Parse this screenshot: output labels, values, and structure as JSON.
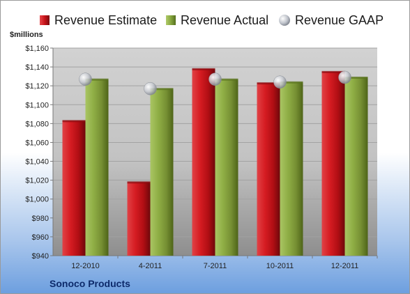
{
  "legend": {
    "estimate": "Revenue Estimate",
    "actual": "Revenue Actual",
    "gaap": "Revenue GAAP"
  },
  "ylabel": "$millions",
  "company": "Sonoco Products",
  "colors": {
    "estimate": "#c8141a",
    "actual": "#86a63e",
    "gaap": "#c0c4cc",
    "plot_bg": "#c8c8c8"
  },
  "chart_data": {
    "type": "bar",
    "categories": [
      "12-2010",
      "4-2011",
      "7-2011",
      "10-2011",
      "12-2011"
    ],
    "series": [
      {
        "name": "Revenue Estimate",
        "values": [
          1083,
          1018,
          1138,
          1123,
          1135
        ]
      },
      {
        "name": "Revenue Actual",
        "values": [
          1127,
          1117,
          1127,
          1124,
          1129
        ]
      },
      {
        "name": "Revenue GAAP",
        "values": [
          1127,
          1117,
          1127,
          1124,
          1129
        ]
      }
    ],
    "ylabel": "$millions",
    "ylim": [
      940,
      1160
    ],
    "yticks": [
      "$940",
      "$960",
      "$980",
      "$1,000",
      "$1,020",
      "$1,040",
      "$1,060",
      "$1,080",
      "$1,100",
      "$1,120",
      "$1,140",
      "$1,160"
    ],
    "grid": true,
    "legend_position": "top"
  }
}
